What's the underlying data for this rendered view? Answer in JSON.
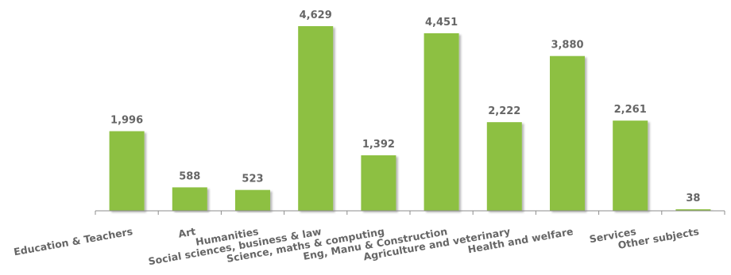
{
  "chart_data": {
    "type": "bar",
    "categories": [
      "Education & Teachers",
      "Art",
      "Humanities",
      "Social sciences, business & law",
      "Science, maths & computing",
      "Eng, Manu & Construction",
      "Agriculture and veterinary",
      "Health and welfare",
      "Services",
      "Other subjects"
    ],
    "values": [
      1996,
      588,
      523,
      4629,
      1392,
      4451,
      2222,
      3880,
      2261,
      38
    ],
    "value_labels": [
      "1,996",
      "588",
      "523",
      "4,629",
      "1,392",
      "4,451",
      "2,222",
      "3,880",
      "2,261",
      "38"
    ],
    "title": "",
    "xlabel": "",
    "ylabel": "",
    "ylim": [
      0,
      4629
    ],
    "grid": false,
    "legend": "none",
    "bar_color": "#8dc043"
  }
}
